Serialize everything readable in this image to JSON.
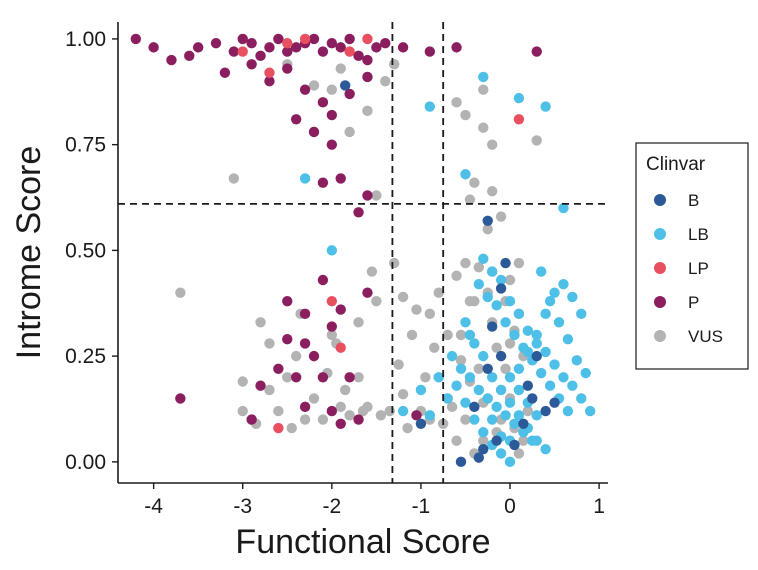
{
  "chart_data": {
    "type": "scatter",
    "xlabel": "Functional Score",
    "ylabel": "Introme Score",
    "xlim": [
      -4.4,
      1.1
    ],
    "ylim": [
      -0.05,
      1.04
    ],
    "xticks": [
      -4,
      -3,
      -2,
      -1,
      0,
      1
    ],
    "xtick_labels": [
      "-4",
      "-3",
      "-2",
      "-1",
      "0",
      "1"
    ],
    "yticks": [
      0.0,
      0.25,
      0.5,
      0.75,
      1.0
    ],
    "ytick_labels": [
      "0.00",
      "0.25",
      "0.50",
      "0.75",
      "1.00"
    ],
    "grid": false,
    "reference_lines": {
      "vertical": [
        -1.32,
        -0.75
      ],
      "horizontal": [
        0.61
      ]
    },
    "legend": {
      "title": "Clinvar",
      "position": "right"
    },
    "series": [
      {
        "name": "VUS",
        "color": "#b3b3b3",
        "points": [
          [
            -3.7,
            0.4
          ],
          [
            -3.1,
            0.67
          ],
          [
            -2.8,
            0.33
          ],
          [
            -2.9,
            0.1
          ],
          [
            -2.7,
            0.17
          ],
          [
            -2.5,
            0.2
          ],
          [
            -2.4,
            0.25
          ],
          [
            -2.3,
            0.1
          ],
          [
            -2.1,
            0.1
          ],
          [
            -2.0,
            0.3
          ],
          [
            -1.9,
            0.13
          ],
          [
            -1.8,
            0.11
          ],
          [
            -1.7,
            0.2
          ],
          [
            -1.6,
            0.13
          ],
          [
            -1.5,
            0.38
          ],
          [
            -1.45,
            0.11
          ],
          [
            -1.3,
            0.47
          ],
          [
            -1.2,
            0.39
          ],
          [
            -1.1,
            0.3
          ],
          [
            -1.0,
            0.12
          ],
          [
            -0.9,
            0.35
          ],
          [
            -0.8,
            0.2
          ],
          [
            -0.7,
            0.15
          ],
          [
            -0.6,
            0.44
          ],
          [
            -0.55,
            0.3
          ],
          [
            -0.5,
            0.1
          ],
          [
            -0.45,
            0.62
          ],
          [
            -0.4,
            0.38
          ],
          [
            -0.35,
            0.22
          ],
          [
            -0.3,
            0.14
          ],
          [
            -0.25,
            0.55
          ],
          [
            -0.2,
            0.45
          ],
          [
            -0.15,
            0.27
          ],
          [
            -0.1,
            0.17
          ],
          [
            -0.05,
            0.38
          ],
          [
            0.0,
            0.28
          ],
          [
            0.05,
            0.08
          ],
          [
            0.1,
            0.47
          ],
          [
            0.2,
            0.12
          ],
          [
            0.3,
            0.76
          ],
          [
            -0.3,
            0.88
          ],
          [
            -0.4,
            0.66
          ],
          [
            -0.2,
            0.75
          ],
          [
            -1.9,
            0.93
          ],
          [
            -2.0,
            0.88
          ],
          [
            -1.8,
            0.78
          ],
          [
            -1.6,
            0.83
          ],
          [
            -1.4,
            0.9
          ],
          [
            -2.2,
            0.89
          ],
          [
            -1.5,
            0.63
          ],
          [
            -2.5,
            0.94
          ],
          [
            -1.3,
            0.94
          ],
          [
            -0.6,
            0.85
          ],
          [
            -0.5,
            0.82
          ],
          [
            -0.3,
            0.79
          ],
          [
            -0.2,
            0.64
          ],
          [
            -0.1,
            0.58
          ],
          [
            0.0,
            0.43
          ],
          [
            0.1,
            0.35
          ],
          [
            0.15,
            0.25
          ],
          [
            -0.6,
            0.05
          ],
          [
            -0.4,
            0.02
          ],
          [
            -0.8,
            0.4
          ],
          [
            -0.9,
            0.1
          ],
          [
            -1.7,
            0.33
          ],
          [
            -2.35,
            0.35
          ],
          [
            -2.6,
            0.12
          ],
          [
            -3.0,
            0.12
          ],
          [
            -2.2,
            0.15
          ],
          [
            -1.25,
            0.23
          ],
          [
            -1.2,
            0.16
          ],
          [
            -0.7,
            0.3
          ],
          [
            -0.5,
            0.47
          ],
          [
            -0.2,
            0.33
          ],
          [
            -0.1,
            0.1
          ],
          [
            0.0,
            0.15
          ],
          [
            -0.3,
            0.05
          ],
          [
            0.1,
            0.02
          ],
          [
            -0.65,
            0.13
          ],
          [
            -0.45,
            0.38
          ],
          [
            -0.35,
            0.46
          ],
          [
            -0.25,
            0.4
          ],
          [
            -0.15,
            0.07
          ],
          [
            -0.05,
            0.22
          ],
          [
            0.05,
            0.31
          ],
          [
            0.15,
            0.05
          ],
          [
            -1.55,
            0.45
          ],
          [
            -1.05,
            0.36
          ],
          [
            -2.45,
            0.08
          ],
          [
            -1.65,
            0.12
          ],
          [
            -2.05,
            0.21
          ],
          [
            -1.95,
            0.28
          ],
          [
            -1.85,
            0.17
          ],
          [
            -2.7,
            0.28
          ],
          [
            -2.85,
            0.09
          ],
          [
            -3.0,
            0.19
          ],
          [
            -1.35,
            0.12
          ],
          [
            -1.15,
            0.08
          ],
          [
            -0.95,
            0.2
          ],
          [
            -0.85,
            0.27
          ],
          [
            -0.75,
            0.09
          ],
          [
            -0.55,
            0.24
          ],
          [
            -0.45,
            0.19
          ]
        ]
      },
      {
        "name": "P",
        "color": "#8b1e5e",
        "points": [
          [
            -4.2,
            1.0
          ],
          [
            -4.0,
            0.98
          ],
          [
            -3.8,
            0.95
          ],
          [
            -3.6,
            0.96
          ],
          [
            -3.5,
            0.98
          ],
          [
            -3.3,
            0.99
          ],
          [
            -3.1,
            0.97
          ],
          [
            -3.0,
            1.0
          ],
          [
            -2.9,
            0.99
          ],
          [
            -2.8,
            0.96
          ],
          [
            -2.7,
            0.98
          ],
          [
            -2.6,
            1.0
          ],
          [
            -2.5,
            0.97
          ],
          [
            -2.4,
            0.98
          ],
          [
            -2.3,
            0.99
          ],
          [
            -2.2,
            1.0
          ],
          [
            -2.1,
            0.97
          ],
          [
            -2.0,
            0.99
          ],
          [
            -1.9,
            0.98
          ],
          [
            -1.8,
            1.0
          ],
          [
            -1.7,
            0.96
          ],
          [
            -1.6,
            0.95
          ],
          [
            -1.5,
            0.98
          ],
          [
            -1.4,
            0.99
          ],
          [
            -1.2,
            0.98
          ],
          [
            -0.9,
            0.97
          ],
          [
            -0.6,
            0.98
          ],
          [
            0.3,
            0.97
          ],
          [
            -3.2,
            0.92
          ],
          [
            -2.9,
            0.94
          ],
          [
            -2.7,
            0.9
          ],
          [
            -2.5,
            0.93
          ],
          [
            -2.3,
            0.88
          ],
          [
            -2.1,
            0.85
          ],
          [
            -2.0,
            0.82
          ],
          [
            -1.8,
            0.87
          ],
          [
            -1.6,
            0.91
          ],
          [
            -2.4,
            0.81
          ],
          [
            -2.2,
            0.78
          ],
          [
            -2.0,
            0.75
          ],
          [
            -2.1,
            0.66
          ],
          [
            -1.9,
            0.67
          ],
          [
            -1.6,
            0.63
          ],
          [
            -1.7,
            0.59
          ],
          [
            -3.7,
            0.15
          ],
          [
            -2.5,
            0.38
          ],
          [
            -2.3,
            0.35
          ],
          [
            -2.0,
            0.32
          ],
          [
            -1.9,
            0.36
          ],
          [
            -2.2,
            0.25
          ],
          [
            -2.4,
            0.2
          ],
          [
            -2.6,
            0.22
          ],
          [
            -1.8,
            0.2
          ],
          [
            -1.7,
            0.1
          ],
          [
            -2.3,
            0.13
          ],
          [
            -2.9,
            0.1
          ],
          [
            -2.0,
            0.12
          ],
          [
            -2.1,
            0.43
          ],
          [
            -1.6,
            0.4
          ],
          [
            -2.3,
            0.28
          ],
          [
            -2.5,
            0.29
          ],
          [
            -2.1,
            0.2
          ],
          [
            -1.9,
            0.09
          ],
          [
            -2.8,
            0.18
          ],
          [
            -1.05,
            0.11
          ]
        ]
      },
      {
        "name": "LP",
        "color": "#e8505f",
        "points": [
          [
            -3.0,
            0.97
          ],
          [
            -2.7,
            0.92
          ],
          [
            -2.5,
            0.99
          ],
          [
            -2.3,
            1.0
          ],
          [
            -1.8,
            0.97
          ],
          [
            -1.6,
            1.0
          ],
          [
            0.1,
            0.81
          ],
          [
            -2.0,
            0.38
          ],
          [
            -1.9,
            0.27
          ],
          [
            -2.6,
            0.08
          ]
        ]
      },
      {
        "name": "LB",
        "color": "#4ec0e8",
        "points": [
          [
            -0.3,
            0.91
          ],
          [
            0.1,
            0.86
          ],
          [
            0.4,
            0.84
          ],
          [
            -0.9,
            0.84
          ],
          [
            -2.3,
            0.67
          ],
          [
            -0.5,
            0.68
          ],
          [
            -2.0,
            0.5
          ],
          [
            0.6,
            0.6
          ],
          [
            -0.3,
            0.48
          ],
          [
            -0.2,
            0.45
          ],
          [
            -0.1,
            0.43
          ],
          [
            0.0,
            0.38
          ],
          [
            0.1,
            0.35
          ],
          [
            0.2,
            0.31
          ],
          [
            0.3,
            0.28
          ],
          [
            0.4,
            0.26
          ],
          [
            0.5,
            0.23
          ],
          [
            0.6,
            0.2
          ],
          [
            0.7,
            0.18
          ],
          [
            0.8,
            0.15
          ],
          [
            0.9,
            0.12
          ],
          [
            -0.5,
            0.33
          ],
          [
            -0.4,
            0.28
          ],
          [
            -0.3,
            0.25
          ],
          [
            -0.2,
            0.2
          ],
          [
            -0.1,
            0.17
          ],
          [
            0.0,
            0.14
          ],
          [
            0.1,
            0.11
          ],
          [
            0.2,
            0.08
          ],
          [
            0.3,
            0.05
          ],
          [
            0.4,
            0.03
          ],
          [
            -0.6,
            0.18
          ],
          [
            -0.5,
            0.14
          ],
          [
            -0.4,
            0.1
          ],
          [
            -0.3,
            0.07
          ],
          [
            -0.2,
            0.04
          ],
          [
            -0.1,
            0.02
          ],
          [
            0.0,
            0.0
          ],
          [
            0.1,
            0.22
          ],
          [
            0.2,
            0.26
          ],
          [
            0.3,
            0.3
          ],
          [
            0.4,
            0.35
          ],
          [
            0.5,
            0.4
          ],
          [
            0.6,
            0.42
          ],
          [
            0.7,
            0.39
          ],
          [
            0.8,
            0.35
          ],
          [
            -0.7,
            0.15
          ],
          [
            -0.8,
            0.2
          ],
          [
            -0.9,
            0.11
          ],
          [
            -1.0,
            0.17
          ],
          [
            -1.2,
            0.12
          ],
          [
            -0.65,
            0.25
          ],
          [
            -0.55,
            0.22
          ],
          [
            -0.45,
            0.2
          ],
          [
            -0.35,
            0.17
          ],
          [
            -0.25,
            0.15
          ],
          [
            -0.15,
            0.13
          ],
          [
            -0.05,
            0.11
          ],
          [
            0.05,
            0.09
          ],
          [
            0.15,
            0.07
          ],
          [
            0.25,
            0.05
          ],
          [
            0.35,
            0.45
          ],
          [
            0.45,
            0.38
          ],
          [
            0.55,
            0.33
          ],
          [
            0.65,
            0.29
          ],
          [
            0.75,
            0.24
          ],
          [
            0.85,
            0.21
          ],
          [
            -0.15,
            0.37
          ],
          [
            -0.05,
            0.33
          ],
          [
            0.05,
            0.3
          ],
          [
            0.15,
            0.27
          ],
          [
            0.25,
            0.24
          ],
          [
            0.35,
            0.21
          ],
          [
            0.45,
            0.18
          ],
          [
            0.55,
            0.15
          ],
          [
            0.65,
            0.12
          ],
          [
            -0.35,
            0.42
          ],
          [
            -0.25,
            0.39
          ],
          [
            -0.45,
            0.3
          ],
          [
            0.0,
            0.2
          ],
          [
            0.1,
            0.17
          ],
          [
            0.2,
            0.14
          ],
          [
            0.3,
            0.11
          ],
          [
            -0.2,
            0.1
          ],
          [
            -0.1,
            0.06
          ],
          [
            0.0,
            0.05
          ]
        ]
      },
      {
        "name": "B",
        "color": "#2c5a99",
        "points": [
          [
            -1.85,
            0.89
          ],
          [
            -0.25,
            0.57
          ],
          [
            -0.05,
            0.47
          ],
          [
            0.3,
            0.25
          ],
          [
            0.25,
            0.15
          ],
          [
            -0.15,
            0.05
          ],
          [
            -0.35,
            0.01
          ],
          [
            -0.55,
            0.0
          ],
          [
            0.05,
            0.04
          ],
          [
            0.4,
            0.12
          ],
          [
            -0.2,
            0.32
          ],
          [
            -0.1,
            0.25
          ],
          [
            0.2,
            0.18
          ],
          [
            -0.3,
            0.03
          ],
          [
            0.15,
            0.09
          ],
          [
            -0.4,
            0.13
          ],
          [
            -1.0,
            0.09
          ],
          [
            -0.1,
            0.41
          ],
          [
            0.5,
            0.14
          ],
          [
            -0.25,
            0.22
          ]
        ]
      }
    ]
  }
}
